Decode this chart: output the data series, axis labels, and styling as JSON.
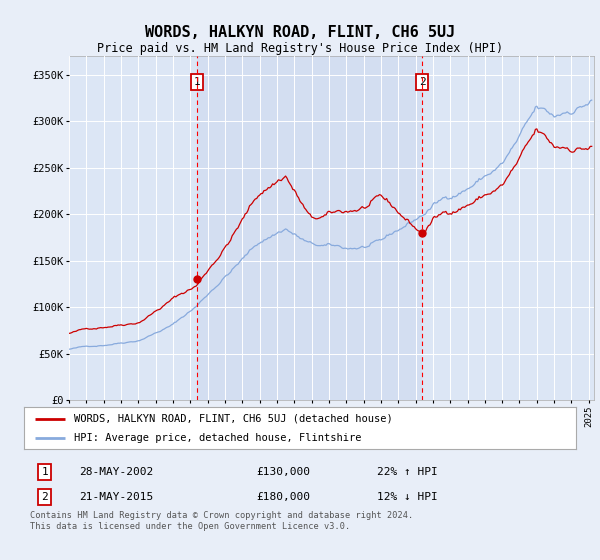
{
  "title": "WORDS, HALKYN ROAD, FLINT, CH6 5UJ",
  "subtitle": "Price paid vs. HM Land Registry's House Price Index (HPI)",
  "background_color": "#e8eef8",
  "plot_bg_color": "#dce6f5",
  "plot_bg_shade_color": "#d0dcf0",
  "legend_line1": "WORDS, HALKYN ROAD, FLINT, CH6 5UJ (detached house)",
  "legend_line2": "HPI: Average price, detached house, Flintshire",
  "footnote": "Contains HM Land Registry data © Crown copyright and database right 2024.\nThis data is licensed under the Open Government Licence v3.0.",
  "marker1_date": "28-MAY-2002",
  "marker1_price": "£130,000",
  "marker1_hpi": "22% ↑ HPI",
  "marker1_year": 2002.38,
  "marker1_value": 130000,
  "marker2_date": "21-MAY-2015",
  "marker2_price": "£180,000",
  "marker2_hpi": "12% ↓ HPI",
  "marker2_year": 2015.38,
  "marker2_value": 180000,
  "ylim": [
    0,
    370000
  ],
  "xlim_start": 1995.0,
  "xlim_end": 2025.3,
  "red_line_color": "#cc0000",
  "blue_line_color": "#88aadd",
  "shade_start_year": 2002.38,
  "shade_end_year": 2015.38,
  "yticks": [
    0,
    50000,
    100000,
    150000,
    200000,
    250000,
    300000,
    350000
  ],
  "ytick_labels": [
    "£0",
    "£50K",
    "£100K",
    "£150K",
    "£200K",
    "£250K",
    "£300K",
    "£350K"
  ]
}
